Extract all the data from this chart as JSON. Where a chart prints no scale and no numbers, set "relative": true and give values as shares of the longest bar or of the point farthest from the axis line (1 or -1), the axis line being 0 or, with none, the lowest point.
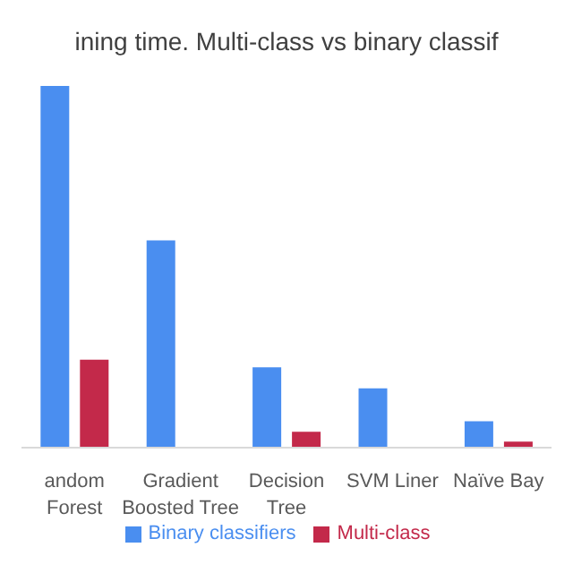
{
  "chart_data": {
    "type": "bar",
    "title": "ining time. Multi-class vs binary classif",
    "categories": [
      "andom Forest",
      "Gradient Boosted Tree",
      "Decision Tree",
      "SVM Liner",
      "Naïve Bay"
    ],
    "relative": true,
    "legend": "bottom",
    "series": [
      {
        "name": "Binary classifiers",
        "color": "#4a8ef0",
        "values": [
          1,
          0.573,
          0.222,
          0.164,
          0.073
        ]
      },
      {
        "name": "Multi-class",
        "color": "#c3294a",
        "values": [
          0.243,
          null,
          0.044,
          null,
          0.017
        ]
      }
    ]
  }
}
